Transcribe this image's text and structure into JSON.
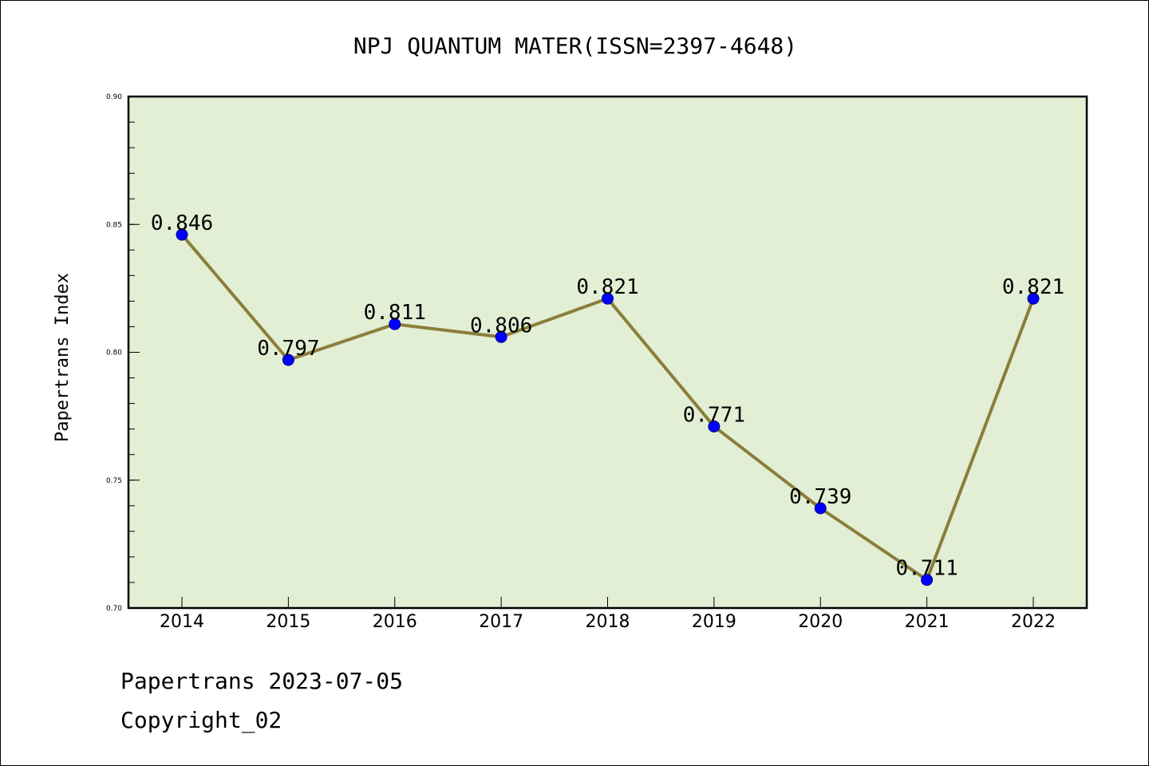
{
  "chart_data": {
    "type": "line",
    "title": "NPJ QUANTUM MATER(ISSN=2397-4648)",
    "xlabel": "",
    "ylabel": "Papertrans Index",
    "categories": [
      "2014",
      "2015",
      "2016",
      "2017",
      "2018",
      "2019",
      "2020",
      "2021",
      "2022"
    ],
    "series": [
      {
        "name": "Papertrans Index",
        "values": [
          0.846,
          0.797,
          0.811,
          0.806,
          0.821,
          0.771,
          0.739,
          0.711,
          0.821
        ],
        "labels": [
          "0.846",
          "0.797",
          "0.811",
          "0.806",
          "0.821",
          "0.771",
          "0.739",
          "0.711",
          "0.821"
        ]
      }
    ],
    "ylim": [
      0.7,
      0.9
    ],
    "yticks": [
      0.7,
      0.75,
      0.8,
      0.85,
      0.9
    ],
    "ytick_labels": [
      "0.70",
      "0.75",
      "0.80",
      "0.85",
      "0.90"
    ],
    "grid": false,
    "legend": "none"
  },
  "colors": {
    "plot_background": "#e2efd5",
    "line": "#8b7d3a",
    "marker": "#0000ff",
    "marker_edge": "#000080",
    "axes": "#000000"
  },
  "footer": {
    "date_text": "Papertrans 2023-07-05",
    "copyright_text": "Copyright_02"
  }
}
